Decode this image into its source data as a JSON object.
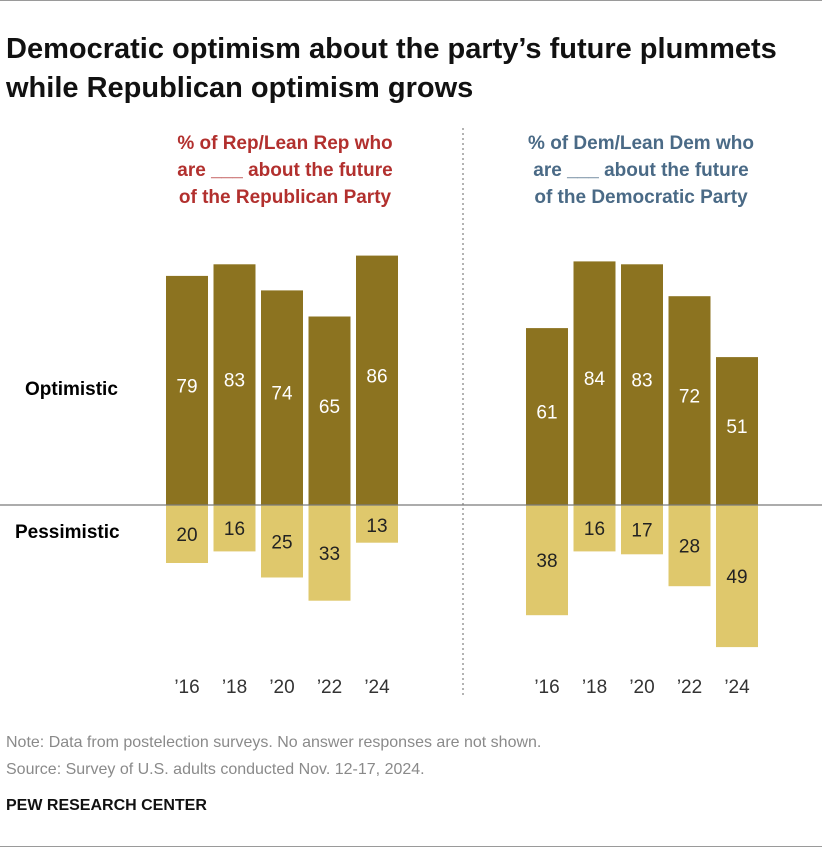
{
  "title": "Democratic optimism about the party’s future plummets while Republican optimism grows",
  "note": "Note: Data from postelection surveys. No answer responses are not shown.",
  "source": "Source: Survey of U.S. adults conducted Nov. 12-17, 2024.",
  "brand": "PEW RESEARCH CENTER",
  "chart_data": [
    {
      "type": "bar",
      "subtitle": [
        "% of Rep/Lean Rep who",
        "are ___ about the future",
        "of the Republican Party"
      ],
      "subtitle_color": "#b2302e",
      "categories": [
        "’16",
        "’18",
        "’20",
        "’22",
        "’24"
      ],
      "series": [
        {
          "name": "Optimistic",
          "values": [
            79,
            83,
            74,
            65,
            86
          ],
          "color": "#8c7320"
        },
        {
          "name": "Pessimistic",
          "values": [
            20,
            16,
            25,
            33,
            13
          ],
          "color": "#dfc86c"
        }
      ]
    },
    {
      "type": "bar",
      "subtitle": [
        "% of Dem/Lean Dem who",
        "are ___ about the future",
        "of the Democratic Party"
      ],
      "subtitle_color": "#4a6a86",
      "categories": [
        "’16",
        "’18",
        "’20",
        "’22",
        "’24"
      ],
      "series": [
        {
          "name": "Optimistic",
          "values": [
            61,
            84,
            83,
            72,
            51
          ],
          "color": "#8c7320"
        },
        {
          "name": "Pessimistic",
          "values": [
            38,
            16,
            17,
            28,
            49
          ],
          "color": "#dfc86c"
        }
      ]
    }
  ],
  "row_labels": {
    "optimistic": "Optimistic",
    "pessimistic": "Pessimistic"
  }
}
